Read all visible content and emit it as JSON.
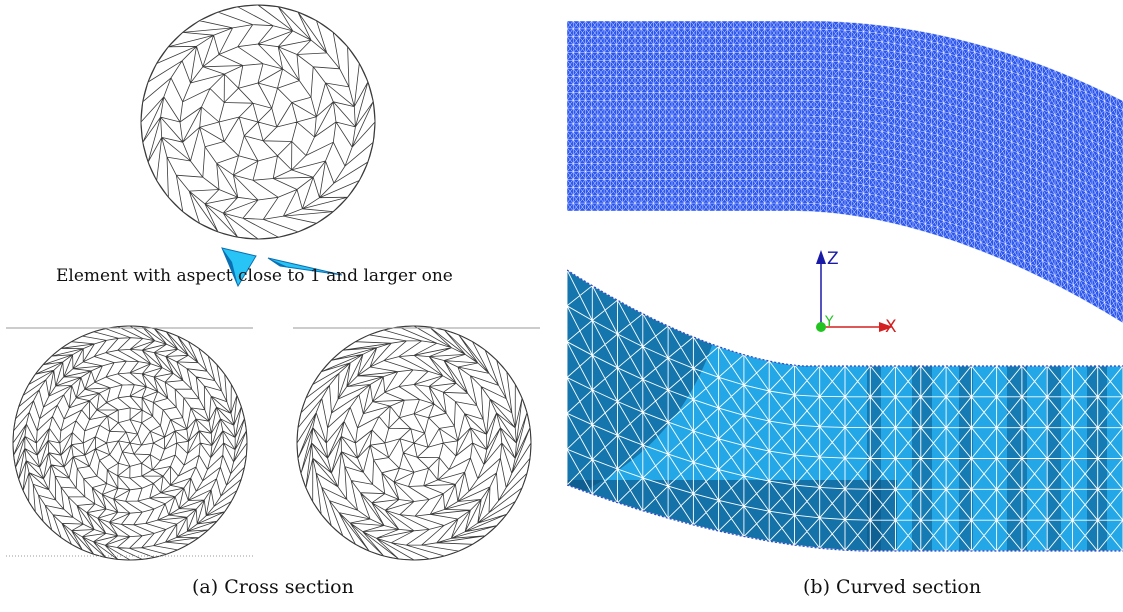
{
  "figure": {
    "panel_a": {
      "caption": "(a) Cross section",
      "element_note": "Element with aspect close to 1 and larger one"
    },
    "panel_b": {
      "caption": "(b) Curved section",
      "axis_labels": {
        "z": "Z",
        "y": "Y",
        "x": "X"
      }
    }
  },
  "colors": {
    "mesh_line": "#3a3a3a",
    "element_light": "#27c4f5",
    "element_dark": "#0b6fb3",
    "upper_band": "#2a55f0",
    "lower_band_light": "#23a7e6",
    "lower_band_dark": "#0a4f7e",
    "axis_z": "#1a1aa8",
    "axis_x": "#d42020",
    "axis_y": "#22c422"
  }
}
